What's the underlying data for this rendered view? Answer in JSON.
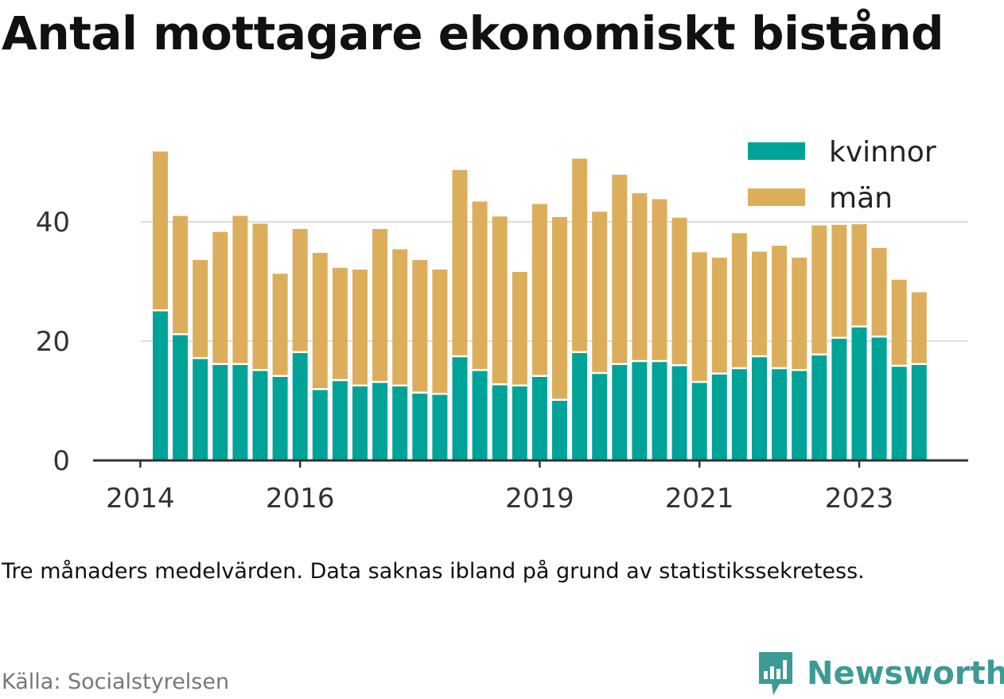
{
  "title": "Antal mottagare ekonomiskt bistånd",
  "note": "Tre månaders medelvärden. Data saknas ibland på grund av statistikssekretess.",
  "source": "Källa: Socialstyrelsen",
  "brand": {
    "name": "Newsworthy",
    "color": "#3d9a94"
  },
  "colors": {
    "kvinnor": "#00a397",
    "man": "#dcae5c",
    "axis": "#333333",
    "grid": "#dddddd"
  },
  "chart_data": {
    "type": "bar",
    "stacked": true,
    "title": "Antal mottagare ekonomiskt bistånd",
    "xlabel": "",
    "ylabel": "",
    "ylim": [
      0,
      52
    ],
    "yticks": [
      0,
      20,
      40
    ],
    "grid": true,
    "legend_position": "top-right",
    "x_tick_labels": [
      "2014",
      "2016",
      "2019",
      "2021",
      "2023"
    ],
    "x_tick_slots": [
      -1,
      7,
      19,
      27,
      35
    ],
    "series": [
      {
        "name": "kvinnor",
        "values": [
          25,
          21,
          17,
          16,
          16,
          15,
          14,
          18,
          11.8,
          13.3,
          12.4,
          13,
          12.4,
          11.2,
          11,
          17.3,
          15,
          12.6,
          12.4,
          14,
          10,
          18,
          14.5,
          16,
          16.5,
          16.5,
          15.8,
          13,
          14.4,
          15.3,
          17.3,
          15.3,
          15,
          17.6,
          20.4,
          22.3,
          20.6,
          15.7,
          16
        ]
      },
      {
        "name": "män",
        "values": [
          26.8,
          20,
          16.6,
          22.3,
          25,
          24.7,
          17.3,
          20.8,
          23,
          19,
          19.6,
          25.8,
          23,
          22.4,
          21,
          31.4,
          28.4,
          28.3,
          19.2,
          29,
          30.8,
          32.6,
          27.2,
          31.9,
          28.3,
          27.3,
          24.9,
          21.9,
          19.6,
          22.8,
          17.7,
          20.7,
          19,
          21.8,
          19.1,
          17.3,
          15,
          14.6,
          12.2
        ]
      }
    ]
  }
}
